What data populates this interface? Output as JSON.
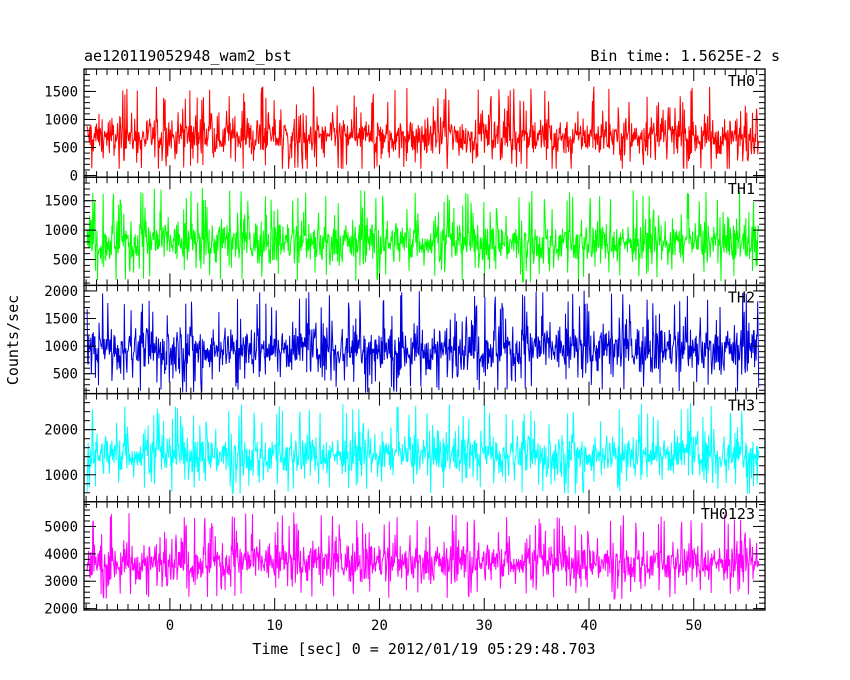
{
  "title_left": "ae120119052948_wam2_bst",
  "title_right": "Bin time: 1.5625E-2 s",
  "ylabel": "Counts/sec",
  "xlabel": "Time [sec] 0 = 2012/01/19 05:29:48.703",
  "chart_data": {
    "type": "line",
    "shared_x": {
      "xlim": [
        -8.2,
        56.8
      ],
      "ticks": [
        0,
        10,
        20,
        30,
        40,
        50
      ],
      "data_range": [
        -7.9,
        56.2
      ]
    },
    "panels": [
      {
        "name": "TH0",
        "color": "#ff0000",
        "ylim": [
          -30,
          1900
        ],
        "yticks": [
          0,
          500,
          1000,
          1500
        ],
        "base": 700,
        "amp": 320,
        "spike": 1900,
        "floor": 120
      },
      {
        "name": "TH1",
        "color": "#00ff00",
        "ylim": [
          60,
          1900
        ],
        "yticks": [
          500,
          1000,
          1500
        ],
        "base": 800,
        "amp": 330,
        "spike": 1900,
        "floor": 90
      },
      {
        "name": "TH2",
        "color": "#0000dd",
        "ylim": [
          140,
          2100
        ],
        "yticks": [
          500,
          1000,
          1500,
          2000
        ],
        "base": 950,
        "amp": 380,
        "spike": 2100,
        "floor": 150
      },
      {
        "name": "TH3",
        "color": "#00ffff",
        "ylim": [
          400,
          2800
        ],
        "yticks": [
          1000,
          2000
        ],
        "base": 1450,
        "amp": 420,
        "spike": 2800,
        "floor": 420
      },
      {
        "name": "TH0123",
        "color": "#ff00ff",
        "ylim": [
          1950,
          5900
        ],
        "yticks": [
          2000,
          3000,
          4000,
          5000
        ],
        "base": 3700,
        "amp": 650,
        "spike": 5900,
        "floor": 1950
      }
    ]
  }
}
